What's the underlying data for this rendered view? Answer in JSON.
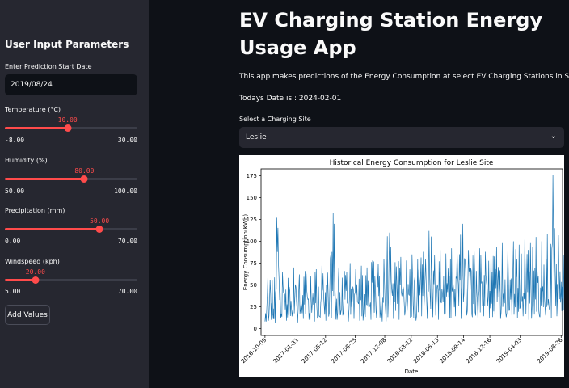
{
  "sidebar": {
    "title": "User Input Parameters",
    "date_label": "Enter Prediction Start Date",
    "date_value": "2019/08/24",
    "sliders": [
      {
        "label": "Temperature (°C)",
        "value": 10.0,
        "value_text": "10.00",
        "min": -8.0,
        "max": 30.0,
        "min_text": "-8.00",
        "max_text": "30.00"
      },
      {
        "label": "Humidity (%)",
        "value": 80.0,
        "value_text": "80.00",
        "min": 50.0,
        "max": 100.0,
        "min_text": "50.00",
        "max_text": "100.00"
      },
      {
        "label": "Precipitation (mm)",
        "value": 50.0,
        "value_text": "50.00",
        "min": 0.0,
        "max": 70.0,
        "min_text": "0.00",
        "max_text": "70.00"
      },
      {
        "label": "Windspeed (kph)",
        "value": 20.0,
        "value_text": "20.00",
        "min": 5.0,
        "max": 70.0,
        "min_text": "5.00",
        "max_text": "70.00"
      }
    ],
    "add_button": "Add Values"
  },
  "main": {
    "title": "EV Charging Station Energy Usage App",
    "description": "This app makes predictions of the Energy Consumption at select EV Charging Stations in Scotland",
    "todays_date": "Todays Date is : 2024-02-01",
    "select_label": "Select a Charging Site",
    "select_value": "Leslie"
  },
  "colors": {
    "accent": "#ff4b4b",
    "line": "#1f77b4"
  },
  "chart_data": {
    "type": "line",
    "title": "Historical Energy Consumption for Leslie Site",
    "xlabel": "Date",
    "ylabel": "Energy Consumption(KWh)",
    "x_range": [
      "2016-09-25",
      "2019-08-31"
    ],
    "ylim": [
      -8,
      183
    ],
    "yticks": [
      0,
      25,
      50,
      75,
      100,
      125,
      150,
      175
    ],
    "xticks": [
      "2016-10-09",
      "2017-01-31",
      "2017-05-12",
      "2017-08-25",
      "2017-12-08",
      "2018-03-12",
      "2018-06-13",
      "2018-09-14",
      "2018-12-16",
      "2019-04-03",
      "2019-08-26"
    ],
    "series": [
      {
        "x": [
          "2016-10-09",
          "2016-10-29",
          "2016-11-10",
          "2016-11-30",
          "2016-12-20",
          "2017-01-09",
          "2017-01-29",
          "2017-02-18",
          "2017-03-10",
          "2017-03-30",
          "2017-04-19",
          "2017-05-09",
          "2017-05-29",
          "2017-06-18",
          "2017-07-08",
          "2017-07-28",
          "2017-08-17",
          "2017-09-06",
          "2017-09-26",
          "2017-10-16",
          "2017-11-05",
          "2017-11-25",
          "2017-12-15",
          "2018-01-04",
          "2018-01-24",
          "2018-02-13",
          "2018-03-05",
          "2018-03-25",
          "2018-04-14",
          "2018-05-04",
          "2018-05-24",
          "2018-06-13",
          "2018-07-03",
          "2018-07-23",
          "2018-08-12",
          "2018-09-01",
          "2018-09-21",
          "2018-10-11",
          "2018-10-31",
          "2018-11-20",
          "2018-12-10",
          "2018-12-30",
          "2019-01-19",
          "2019-02-08",
          "2019-02-28",
          "2019-03-20",
          "2019-04-09",
          "2019-04-29",
          "2019-05-19",
          "2019-06-08",
          "2019-06-28",
          "2019-07-18",
          "2019-08-07",
          "2019-08-26"
        ],
        "low": [
          8,
          10,
          6,
          12,
          9,
          14,
          7,
          11,
          10,
          8,
          13,
          9,
          12,
          10,
          15,
          8,
          11,
          9,
          14,
          10,
          12,
          8,
          13,
          11,
          10,
          15,
          12,
          9,
          14,
          11,
          13,
          10,
          16,
          12,
          14,
          11,
          15,
          13,
          10,
          14,
          12,
          16,
          11,
          13,
          15,
          12,
          14,
          10,
          16,
          13,
          15,
          12,
          14,
          20
        ],
        "high": [
          60,
          55,
          127,
          65,
          58,
          70,
          62,
          66,
          60,
          68,
          72,
          64,
          132,
          70,
          66,
          75,
          68,
          72,
          70,
          78,
          74,
          80,
          110,
          76,
          82,
          78,
          85,
          80,
          88,
          112,
          84,
          90,
          86,
          92,
          88,
          120,
          90,
          95,
          92,
          88,
          96,
          94,
          98,
          92,
          100,
          96,
          102,
          98,
          105,
          100,
          108,
          176,
          107,
          88
        ]
      }
    ]
  }
}
